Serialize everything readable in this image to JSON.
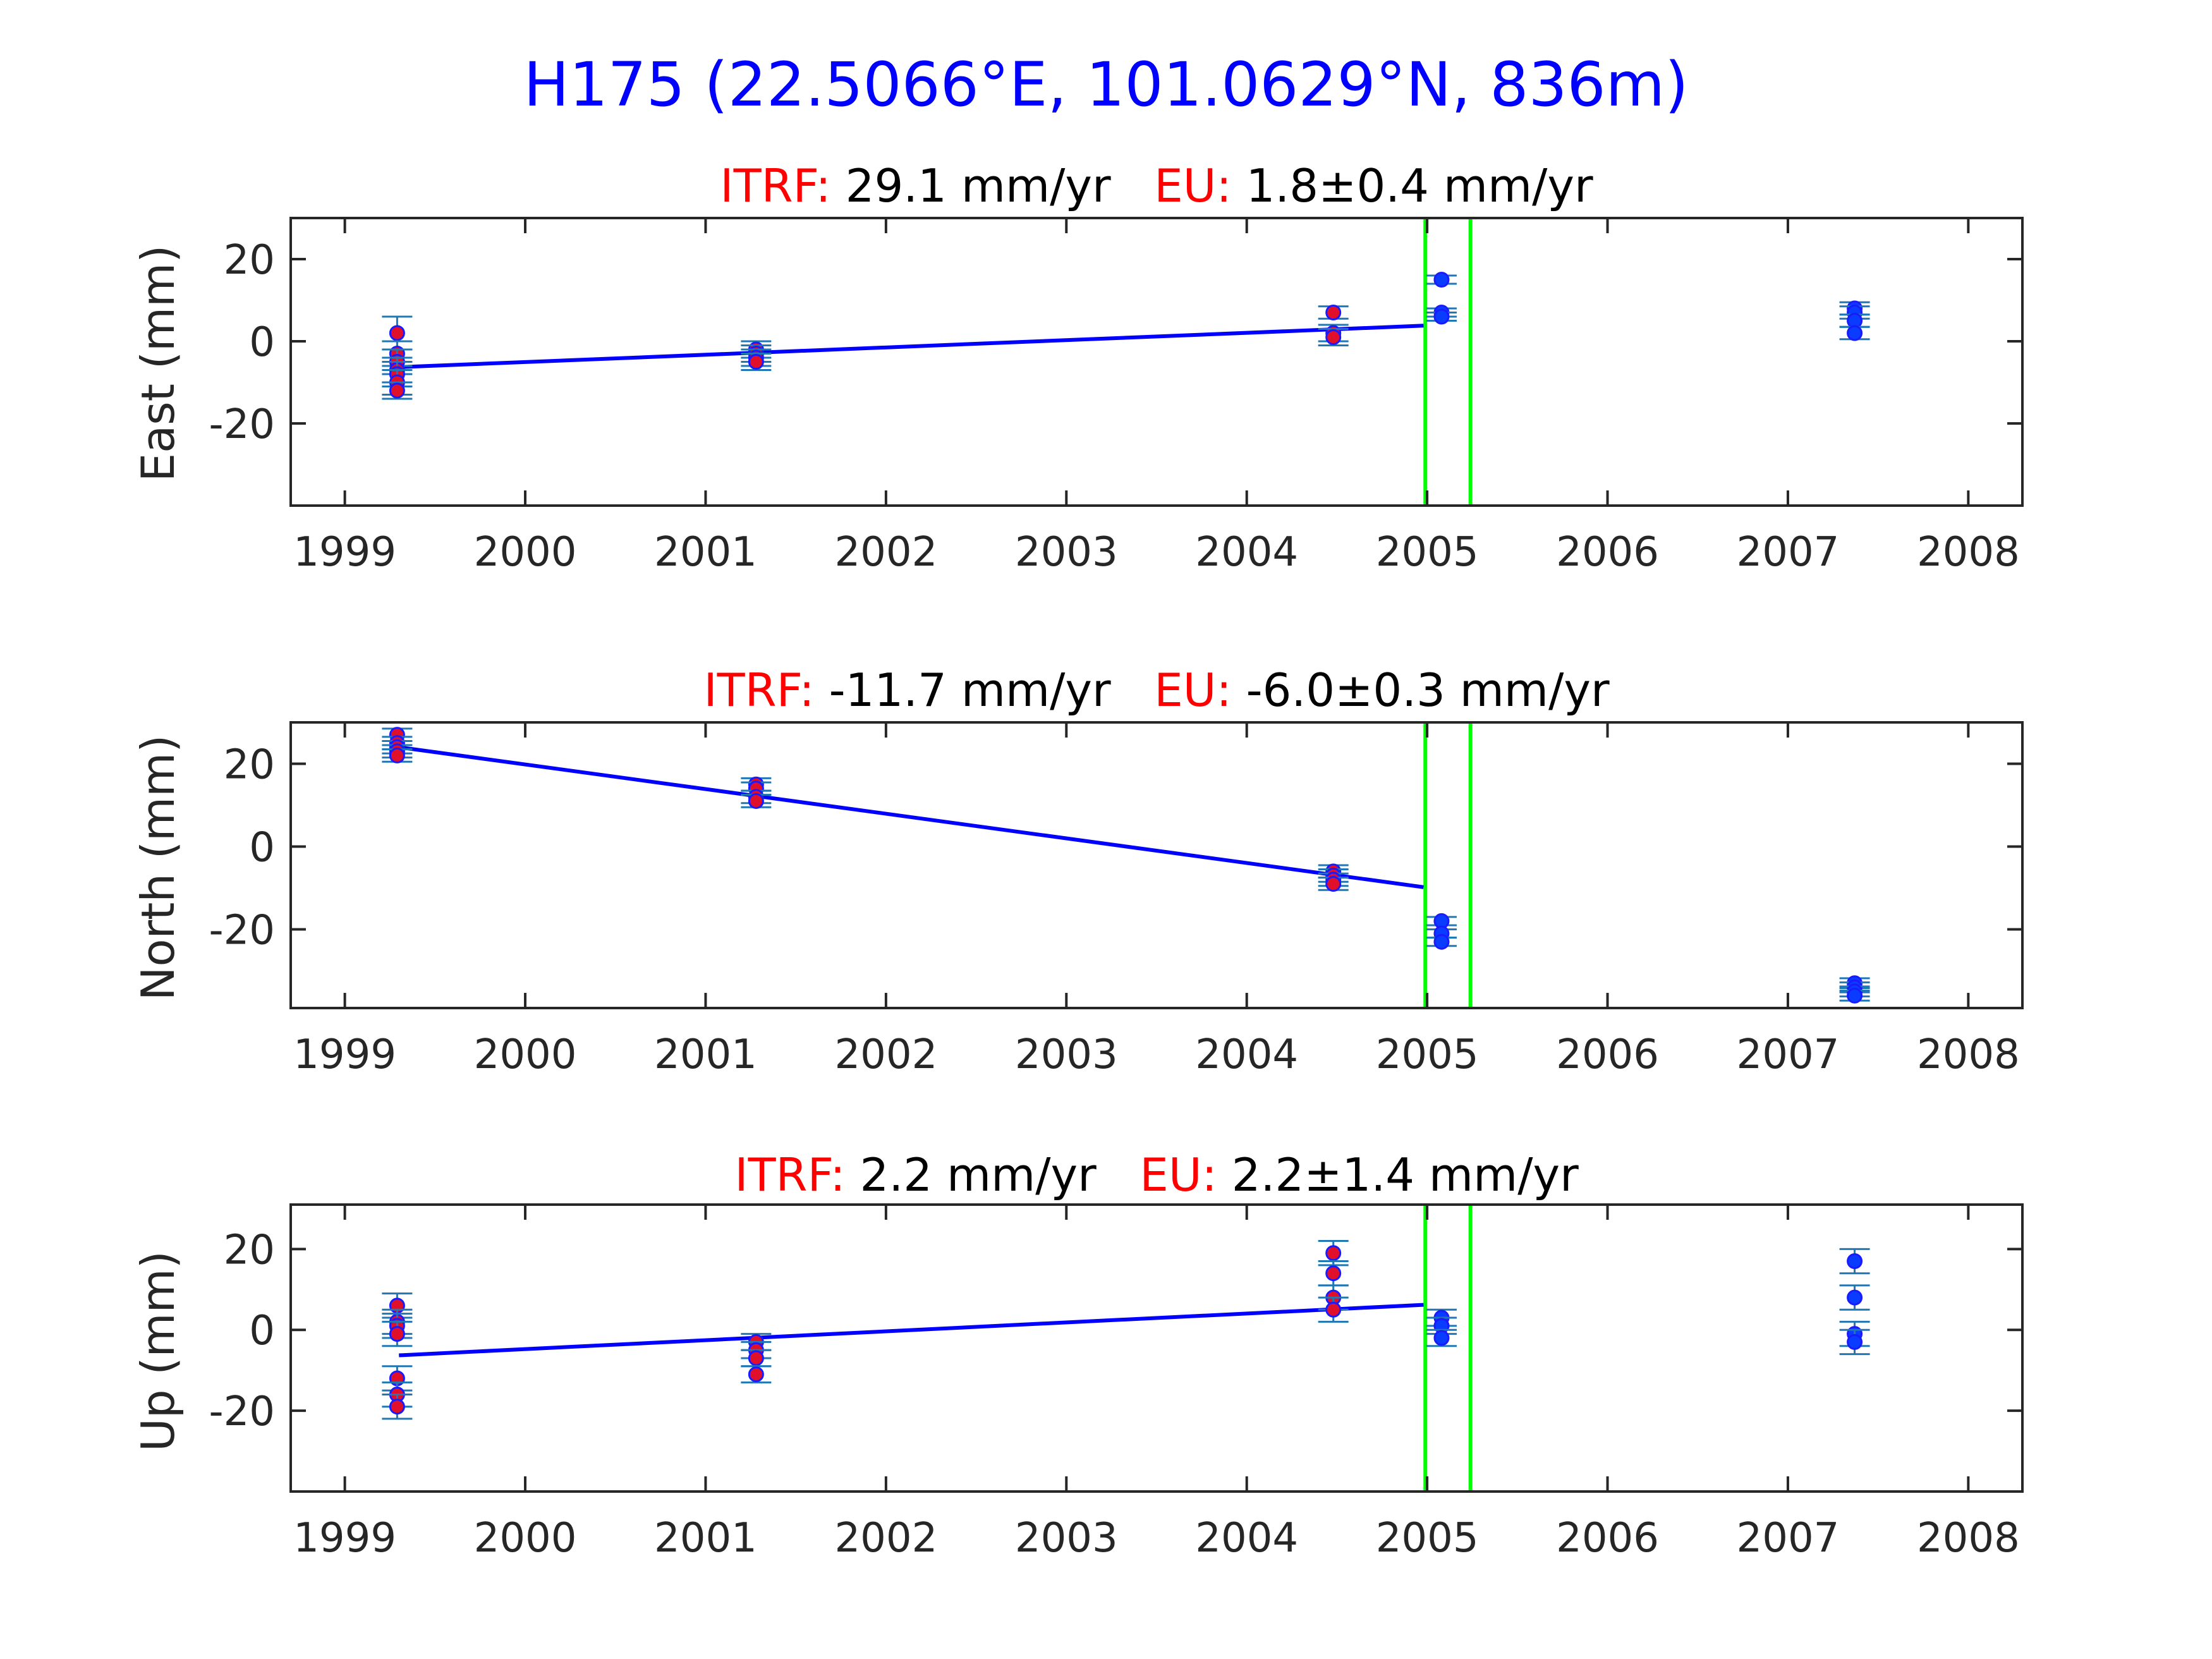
{
  "title": "H175 (22.5066°E, 101.0629°N, 836m)",
  "colors": {
    "title": "#0000ff",
    "label_red": "#ff0000",
    "fit_line": "#0000ff",
    "marker_pre": "#e0102a",
    "marker_post": "#0a3cff",
    "errorbar": "#1f77b4",
    "event_line": "#00ff00"
  },
  "chart_data": [
    {
      "type": "scatter",
      "component": "East",
      "ylabel": "East (mm)",
      "itrf_label": "ITRF:",
      "itrf_value": "29.1 mm/yr",
      "eu_label": "EU:",
      "eu_value": "1.8±0.4 mm/yr",
      "xlim": [
        1998.7,
        2008.3
      ],
      "ylim": [
        -40,
        30
      ],
      "xticks": [
        1999,
        2000,
        2001,
        2002,
        2003,
        2004,
        2005,
        2006,
        2007,
        2008
      ],
      "yticks": [
        20,
        0,
        -20
      ],
      "event_lines": [
        2004.99,
        2005.24
      ],
      "fit": {
        "x": [
          1999.3,
          2004.98
        ],
        "y": [
          -6.3,
          3.8
        ]
      },
      "points": [
        {
          "x": 1999.29,
          "y": 2,
          "err": 4
        },
        {
          "x": 1999.29,
          "y": -3,
          "err": 3
        },
        {
          "x": 1999.29,
          "y": -5,
          "err": 3
        },
        {
          "x": 1999.29,
          "y": -7,
          "err": 3
        },
        {
          "x": 1999.29,
          "y": -8,
          "err": 3
        },
        {
          "x": 1999.29,
          "y": -10,
          "err": 3
        },
        {
          "x": 1999.29,
          "y": -12,
          "err": 2
        },
        {
          "x": 2001.28,
          "y": -2,
          "err": 2
        },
        {
          "x": 2001.28,
          "y": -3,
          "err": 2
        },
        {
          "x": 2001.28,
          "y": -4,
          "err": 2
        },
        {
          "x": 2001.28,
          "y": -5,
          "err": 2
        },
        {
          "x": 2004.48,
          "y": 7,
          "err": 1.5
        },
        {
          "x": 2004.48,
          "y": 2,
          "err": 2
        },
        {
          "x": 2004.48,
          "y": 1,
          "err": 2
        },
        {
          "x": 2005.08,
          "y": 15,
          "err": 1,
          "post": true
        },
        {
          "x": 2005.08,
          "y": 7,
          "err": 1,
          "post": true
        },
        {
          "x": 2005.08,
          "y": 6,
          "err": 1,
          "post": true
        },
        {
          "x": 2007.37,
          "y": 8,
          "err": 1.5,
          "post": true
        },
        {
          "x": 2007.37,
          "y": 7,
          "err": 1.5,
          "post": true
        },
        {
          "x": 2007.37,
          "y": 5,
          "err": 1.5,
          "post": true
        },
        {
          "x": 2007.37,
          "y": 2,
          "err": 1.5,
          "post": true
        }
      ]
    },
    {
      "type": "scatter",
      "component": "North",
      "ylabel": "North (mm)",
      "itrf_label": "ITRF:",
      "itrf_value": "-11.7 mm/yr",
      "eu_label": "EU:",
      "eu_value": "-6.0±0.3 mm/yr",
      "xlim": [
        1998.7,
        2008.3
      ],
      "ylim": [
        -39,
        30
      ],
      "xticks": [
        1999,
        2000,
        2001,
        2002,
        2003,
        2004,
        2005,
        2006,
        2007,
        2008
      ],
      "yticks": [
        20,
        0,
        -20
      ],
      "event_lines": [
        2004.99,
        2005.24
      ],
      "fit": {
        "x": [
          1999.3,
          2004.98
        ],
        "y": [
          24,
          -9.8
        ]
      },
      "points": [
        {
          "x": 1999.29,
          "y": 27,
          "err": 1.5
        },
        {
          "x": 1999.29,
          "y": 25,
          "err": 1.5
        },
        {
          "x": 1999.29,
          "y": 24,
          "err": 1.5
        },
        {
          "x": 1999.29,
          "y": 23,
          "err": 1.5
        },
        {
          "x": 1999.29,
          "y": 22,
          "err": 1.5
        },
        {
          "x": 2001.28,
          "y": 15,
          "err": 1.5
        },
        {
          "x": 2001.28,
          "y": 14,
          "err": 1.5
        },
        {
          "x": 2001.28,
          "y": 12,
          "err": 1.5
        },
        {
          "x": 2001.28,
          "y": 11,
          "err": 1.5
        },
        {
          "x": 2004.48,
          "y": -6,
          "err": 1.5
        },
        {
          "x": 2004.48,
          "y": -7,
          "err": 1.5
        },
        {
          "x": 2004.48,
          "y": -8,
          "err": 1.5
        },
        {
          "x": 2004.48,
          "y": -9,
          "err": 1.5
        },
        {
          "x": 2005.08,
          "y": -18,
          "err": 1,
          "post": true
        },
        {
          "x": 2005.08,
          "y": -21,
          "err": 1,
          "post": true
        },
        {
          "x": 2005.08,
          "y": -23,
          "err": 1,
          "post": true
        },
        {
          "x": 2007.37,
          "y": -33,
          "err": 1.2,
          "post": true
        },
        {
          "x": 2007.37,
          "y": -34,
          "err": 1.2,
          "post": true
        },
        {
          "x": 2007.37,
          "y": -35,
          "err": 1.2,
          "post": true
        },
        {
          "x": 2007.37,
          "y": -36,
          "err": 1.2,
          "post": true
        }
      ]
    },
    {
      "type": "scatter",
      "component": "Up",
      "ylabel": "Up (mm)",
      "itrf_label": "ITRF:",
      "itrf_value": "2.2 mm/yr",
      "eu_label": "EU:",
      "eu_value": "2.2±1.4 mm/yr",
      "xlim": [
        1998.7,
        2008.3
      ],
      "ylim": [
        -40,
        31
      ],
      "xticks": [
        1999,
        2000,
        2001,
        2002,
        2003,
        2004,
        2005,
        2006,
        2007,
        2008
      ],
      "yticks": [
        20,
        0,
        -20
      ],
      "event_lines": [
        2004.99,
        2005.24
      ],
      "fit": {
        "x": [
          1999.3,
          2004.98
        ],
        "y": [
          -6.3,
          6.2
        ]
      },
      "points": [
        {
          "x": 1999.29,
          "y": 6,
          "err": 3
        },
        {
          "x": 1999.29,
          "y": 2,
          "err": 3
        },
        {
          "x": 1999.29,
          "y": 1,
          "err": 3
        },
        {
          "x": 1999.29,
          "y": -1,
          "err": 3
        },
        {
          "x": 1999.29,
          "y": -12,
          "err": 3
        },
        {
          "x": 1999.29,
          "y": -16,
          "err": 3
        },
        {
          "x": 1999.29,
          "y": -19,
          "err": 3
        },
        {
          "x": 2001.28,
          "y": -3,
          "err": 2
        },
        {
          "x": 2001.28,
          "y": -5,
          "err": 2
        },
        {
          "x": 2001.28,
          "y": -7,
          "err": 2
        },
        {
          "x": 2001.28,
          "y": -11,
          "err": 2
        },
        {
          "x": 2004.48,
          "y": 19,
          "err": 3
        },
        {
          "x": 2004.48,
          "y": 14,
          "err": 3
        },
        {
          "x": 2004.48,
          "y": 8,
          "err": 3
        },
        {
          "x": 2004.48,
          "y": 5,
          "err": 3
        },
        {
          "x": 2005.08,
          "y": 3,
          "err": 2,
          "post": true
        },
        {
          "x": 2005.08,
          "y": 1,
          "err": 2,
          "post": true
        },
        {
          "x": 2005.08,
          "y": -2,
          "err": 2,
          "post": true
        },
        {
          "x": 2007.37,
          "y": 17,
          "err": 3,
          "post": true
        },
        {
          "x": 2007.37,
          "y": 8,
          "err": 3,
          "post": true
        },
        {
          "x": 2007.37,
          "y": -1,
          "err": 3,
          "post": true
        },
        {
          "x": 2007.37,
          "y": -3,
          "err": 3,
          "post": true
        }
      ]
    }
  ]
}
